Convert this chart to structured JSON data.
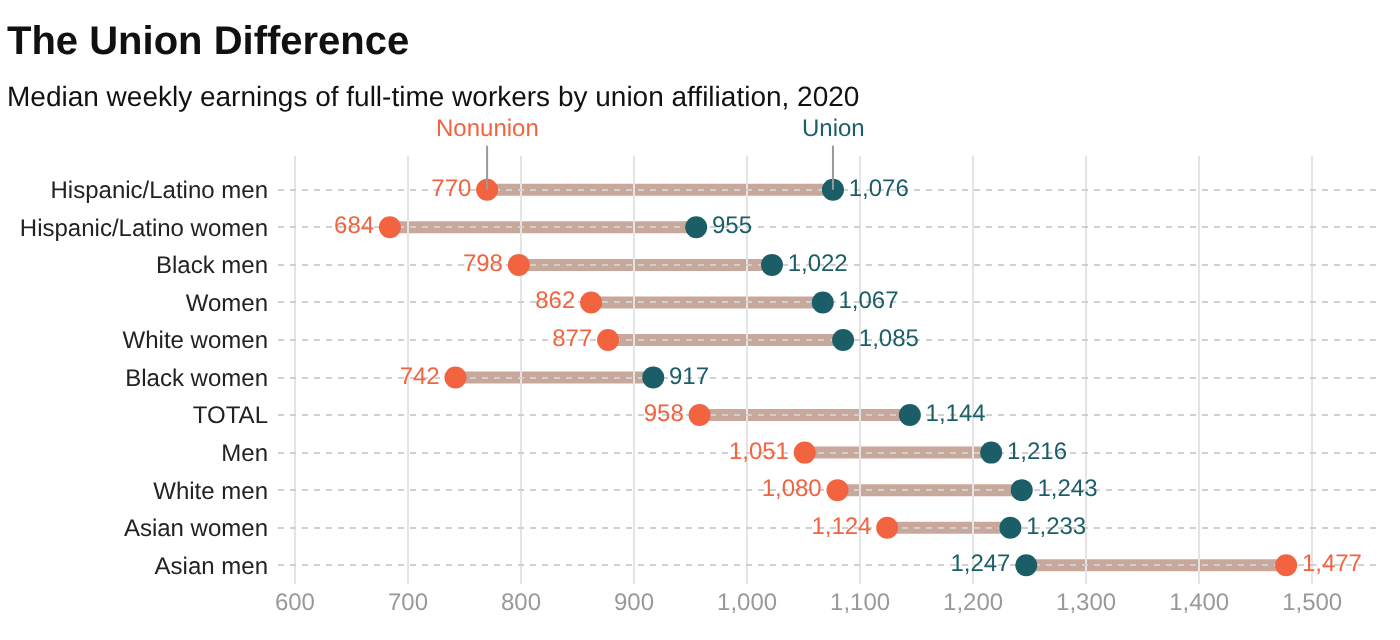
{
  "chart_data": {
    "type": "scatter",
    "orientation": "horizontal",
    "title": "The Union Difference",
    "subtitle": "Median weekly earnings of full-time workers by union affiliation, 2020",
    "categories": [
      "Hispanic/Latino men",
      "Hispanic/Latino women",
      "Black men",
      "Women",
      "White women",
      "Black women",
      "TOTAL",
      "Men",
      "White men",
      "Asian women",
      "Asian men"
    ],
    "series": [
      {
        "name": "Nonunion",
        "color": "#f26340",
        "values": [
          770,
          684,
          798,
          862,
          877,
          742,
          958,
          1051,
          1080,
          1124,
          1477
        ],
        "value_labels": [
          "770",
          "684",
          "798",
          "862",
          "877",
          "742",
          "958",
          "1,051",
          "1,080",
          "1,124",
          "1,477"
        ]
      },
      {
        "name": "Union",
        "color": "#1b5e68",
        "values": [
          1076,
          955,
          1022,
          1067,
          1085,
          917,
          1144,
          1216,
          1243,
          1233,
          1247
        ],
        "value_labels": [
          "1,076",
          "955",
          "1,022",
          "1,067",
          "1,085",
          "917",
          "1,144",
          "1,216",
          "1,243",
          "1,233",
          "1,247"
        ]
      }
    ],
    "xlim": [
      585,
      1560
    ],
    "xticks": [
      {
        "value": 600,
        "label": "600"
      },
      {
        "value": 700,
        "label": "700"
      },
      {
        "value": 800,
        "label": "800"
      },
      {
        "value": 900,
        "label": "900"
      },
      {
        "value": 1000,
        "label": "1,000"
      },
      {
        "value": 1100,
        "label": "1,100"
      },
      {
        "value": 1200,
        "label": "1,200"
      },
      {
        "value": 1300,
        "label": "1,300"
      },
      {
        "value": 1400,
        "label": "1,400"
      },
      {
        "value": 1500,
        "label": "1,500"
      }
    ],
    "grid": true,
    "marker": "circle"
  }
}
